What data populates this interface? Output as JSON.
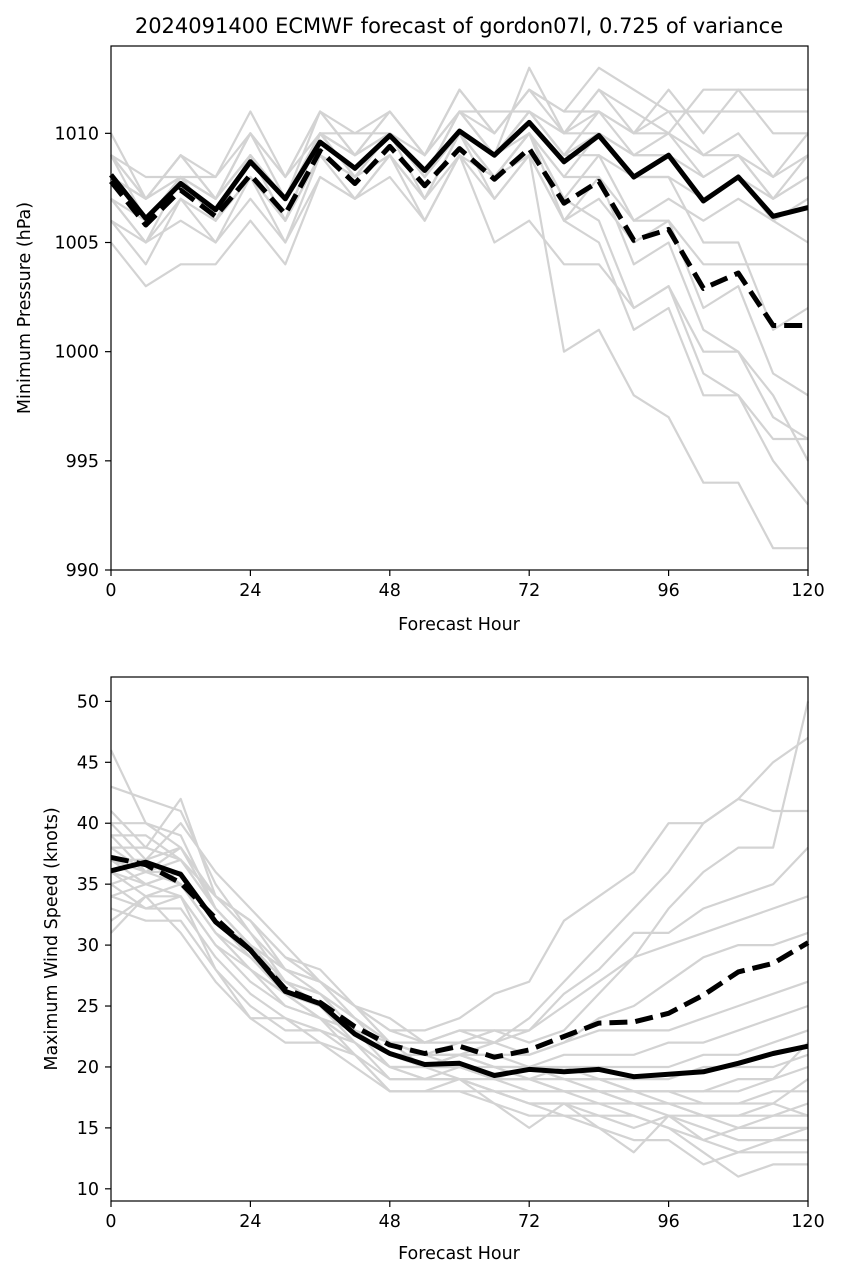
{
  "figure": {
    "title": "2024091400 ECMWF forecast of gordon07l, 0.725 of variance"
  },
  "colors": {
    "member": "#d3d3d3",
    "mean": "#000000"
  },
  "chart_data": [
    {
      "type": "line",
      "xlabel": "Forecast Hour",
      "ylabel": "Minimum Pressure (hPa)",
      "xlim": [
        0,
        120
      ],
      "ylim": [
        990,
        1014
      ],
      "xticks": [
        0,
        24,
        48,
        72,
        96,
        120
      ],
      "yticks": [
        990,
        995,
        1000,
        1005,
        1010
      ],
      "x": [
        0,
        6,
        12,
        18,
        24,
        30,
        36,
        42,
        48,
        54,
        60,
        66,
        72,
        78,
        84,
        90,
        96,
        102,
        108,
        114,
        120
      ],
      "members": [
        [
          1010,
          1007,
          1009,
          1008,
          1010,
          1008,
          1011,
          1009,
          1010,
          1008,
          1011,
          1009,
          1013,
          1010,
          1012,
          1011,
          1010,
          1012,
          1012,
          1012,
          1012
        ],
        [
          1009,
          1008,
          1008,
          1008,
          1011,
          1008,
          1010,
          1010,
          1011,
          1009,
          1012,
          1010,
          1012,
          1011,
          1013,
          1012,
          1011,
          1011,
          1011,
          1011,
          1011
        ],
        [
          1008,
          1007,
          1009,
          1007,
          1010,
          1007,
          1011,
          1010,
          1010,
          1009,
          1011,
          1011,
          1011,
          1010,
          1012,
          1010,
          1012,
          1010,
          1012,
          1010,
          1010
        ],
        [
          1008,
          1006,
          1008,
          1007,
          1009,
          1007,
          1010,
          1009,
          1010,
          1008,
          1010,
          1009,
          1011,
          1009,
          1011,
          1010,
          1010,
          1009,
          1010,
          1008,
          1010
        ],
        [
          1007,
          1005,
          1008,
          1006,
          1009,
          1006,
          1010,
          1008,
          1010,
          1008,
          1010,
          1008,
          1010,
          1008,
          1010,
          1009,
          1009,
          1008,
          1009,
          1007,
          1009
        ],
        [
          1007,
          1005,
          1007,
          1006,
          1008,
          1006,
          1009,
          1008,
          1009,
          1007,
          1010,
          1008,
          1010,
          1007,
          1009,
          1008,
          1008,
          1007,
          1008,
          1007,
          1008
        ],
        [
          1006,
          1004,
          1007,
          1005,
          1008,
          1005,
          1009,
          1007,
          1009,
          1007,
          1009,
          1008,
          1009,
          1006,
          1008,
          1006,
          1007,
          1006,
          1007,
          1006,
          1007
        ],
        [
          1006,
          1005,
          1006,
          1005,
          1007,
          1005,
          1008,
          1007,
          1009,
          1006,
          1009,
          1007,
          1009,
          1006,
          1007,
          1005,
          1006,
          1004,
          1004,
          1004,
          1004
        ],
        [
          1005,
          1003,
          1004,
          1004,
          1006,
          1004,
          1008,
          1007,
          1008,
          1006,
          1009,
          1005,
          1006,
          1004,
          1004,
          1002,
          1003,
          1000,
          1000,
          997,
          996
        ],
        [
          1008,
          1006,
          1008,
          1006,
          1008,
          1006,
          1009,
          1008,
          1009,
          1007,
          1010,
          1007,
          1009,
          1000,
          1001,
          998,
          997,
          994,
          994,
          991,
          991
        ],
        [
          1009,
          1007,
          1008,
          1007,
          1009,
          1007,
          1010,
          1008,
          1010,
          1008,
          1010,
          1008,
          1010,
          1006,
          1005,
          1001,
          1002,
          998,
          998,
          995,
          993
        ],
        [
          1007,
          1006,
          1008,
          1006,
          1009,
          1006,
          1009,
          1008,
          1010,
          1007,
          1010,
          1008,
          1010,
          1007,
          1006,
          1002,
          1003,
          999,
          998,
          996,
          996
        ],
        [
          1008,
          1006,
          1008,
          1007,
          1009,
          1007,
          1010,
          1009,
          1010,
          1008,
          1011,
          1009,
          1010,
          1008,
          1008,
          1004,
          1005,
          1001,
          1000,
          998,
          995
        ],
        [
          1009,
          1006,
          1008,
          1006,
          1009,
          1006,
          1010,
          1008,
          1010,
          1008,
          1011,
          1009,
          1011,
          1009,
          1009,
          1006,
          1006,
          1002,
          1003,
          999,
          998
        ],
        [
          1008,
          1006,
          1008,
          1006,
          1008,
          1006,
          1010,
          1008,
          1010,
          1008,
          1010,
          1009,
          1011,
          1009,
          1010,
          1008,
          1008,
          1005,
          1005,
          1001,
          1002
        ],
        [
          1008,
          1007,
          1008,
          1007,
          1009,
          1007,
          1010,
          1009,
          1011,
          1009,
          1011,
          1010,
          1012,
          1010,
          1011,
          1009,
          1009,
          1007,
          1008,
          1006,
          1005
        ],
        [
          1009,
          1007,
          1009,
          1007,
          1010,
          1008,
          1011,
          1009,
          1011,
          1009,
          1012,
          1010,
          1012,
          1011,
          1011,
          1010,
          1011,
          1009,
          1009,
          1008,
          1009
        ],
        [
          1008,
          1006,
          1008,
          1006,
          1009,
          1006,
          1010,
          1008,
          1010,
          1008,
          1010,
          1009,
          1011,
          1010,
          1010,
          1009,
          1010,
          1008,
          1009,
          1007,
          1008
        ]
      ],
      "mean": [
        1008.1,
        1006.1,
        1007.7,
        1006.5,
        1008.7,
        1007.0,
        1009.6,
        1008.4,
        1009.9,
        1008.3,
        1010.1,
        1009.0,
        1010.5,
        1008.7,
        1009.9,
        1008.0,
        1009.0,
        1006.9,
        1008.0,
        1006.2,
        1006.6
      ],
      "mean_dashed": [
        1007.8,
        1005.8,
        1007.4,
        1006.2,
        1008.1,
        1006.3,
        1009.2,
        1007.7,
        1009.4,
        1007.6,
        1009.3,
        1007.9,
        1009.3,
        1006.8,
        1007.8,
        1005.1,
        1005.6,
        1002.9,
        1003.6,
        1001.2,
        1001.2
      ]
    },
    {
      "type": "line",
      "xlabel": "Forecast Hour",
      "ylabel": "Maximum Wind Speed (knots)",
      "xlim": [
        0,
        120
      ],
      "ylim": [
        9,
        52
      ],
      "xticks": [
        0,
        24,
        48,
        72,
        96,
        120
      ],
      "yticks": [
        10,
        15,
        20,
        25,
        30,
        35,
        40,
        45,
        50
      ],
      "x": [
        0,
        6,
        12,
        18,
        24,
        30,
        36,
        42,
        48,
        54,
        60,
        66,
        72,
        78,
        84,
        90,
        96,
        102,
        108,
        114,
        120
      ],
      "members": [
        [
          46,
          40,
          39,
          33,
          30,
          26,
          24,
          23,
          22,
          21,
          21,
          22,
          24,
          27,
          30,
          33,
          36,
          40,
          42,
          41,
          41
        ],
        [
          43,
          42,
          41,
          35,
          31,
          27,
          26,
          24,
          22,
          22,
          23,
          23,
          22,
          23,
          26,
          29,
          33,
          36,
          38,
          38,
          50
        ],
        [
          41,
          38,
          42,
          34,
          32,
          28,
          27,
          25,
          23,
          23,
          24,
          26,
          27,
          32,
          34,
          36,
          40,
          40,
          42,
          45,
          47
        ],
        [
          40,
          37,
          40,
          36,
          33,
          30,
          27,
          25,
          24,
          22,
          23,
          22,
          23,
          26,
          28,
          31,
          31,
          33,
          34,
          35,
          38
        ],
        [
          39,
          36,
          38,
          34,
          32,
          29,
          27,
          25,
          23,
          22,
          22,
          23,
          23,
          25,
          27,
          29,
          30,
          31,
          32,
          33,
          34
        ],
        [
          38,
          36,
          37,
          33,
          30,
          28,
          26,
          24,
          22,
          21,
          22,
          22,
          21,
          22,
          24,
          25,
          27,
          29,
          30,
          30,
          31
        ],
        [
          37,
          35,
          36,
          32,
          29,
          27,
          25,
          23,
          21,
          21,
          21,
          21,
          21,
          22,
          23,
          23,
          23,
          24,
          25,
          26,
          27
        ],
        [
          36,
          34,
          35,
          31,
          28,
          26,
          24,
          23,
          21,
          20,
          21,
          21,
          20,
          21,
          21,
          21,
          22,
          22,
          23,
          24,
          25
        ],
        [
          35,
          33,
          34,
          30,
          27,
          25,
          24,
          22,
          20,
          20,
          20,
          20,
          19,
          20,
          20,
          20,
          20,
          21,
          21,
          22,
          23
        ],
        [
          34,
          33,
          33,
          29,
          26,
          24,
          23,
          22,
          20,
          19,
          19,
          19,
          19,
          19,
          19,
          19,
          19,
          20,
          20,
          20,
          21
        ],
        [
          33,
          32,
          32,
          28,
          25,
          23,
          23,
          21,
          19,
          19,
          19,
          18,
          18,
          18,
          18,
          18,
          18,
          18,
          19,
          19,
          20
        ],
        [
          32,
          34,
          31,
          27,
          24,
          24,
          22,
          21,
          18,
          18,
          18,
          18,
          17,
          17,
          17,
          17,
          17,
          17,
          17,
          18,
          18
        ],
        [
          31,
          34,
          34,
          28,
          24,
          22,
          22,
          20,
          18,
          18,
          18,
          17,
          16,
          16,
          16,
          15,
          16,
          16,
          16,
          16,
          17
        ],
        [
          35,
          36,
          35,
          31,
          28,
          25,
          24,
          21,
          18,
          18,
          19,
          17,
          15,
          17,
          15,
          13,
          16,
          14,
          15,
          16,
          16
        ],
        [
          36,
          35,
          36,
          32,
          29,
          26,
          25,
          22,
          19,
          19,
          19,
          18,
          17,
          16,
          15,
          14,
          14,
          12,
          13,
          14,
          15
        ],
        [
          37,
          37,
          38,
          33,
          30,
          27,
          26,
          23,
          20,
          20,
          19,
          18,
          17,
          17,
          16,
          16,
          15,
          13,
          11,
          12,
          12
        ],
        [
          38,
          38,
          37,
          33,
          30,
          28,
          27,
          24,
          21,
          21,
          20,
          19,
          18,
          18,
          17,
          16,
          15,
          14,
          13,
          13,
          13
        ],
        [
          39,
          39,
          37,
          34,
          31,
          28,
          27,
          25,
          22,
          20,
          21,
          20,
          19,
          18,
          18,
          17,
          16,
          15,
          14,
          14,
          14
        ],
        [
          40,
          40,
          38,
          34,
          32,
          29,
          28,
          25,
          22,
          21,
          21,
          20,
          20,
          19,
          18,
          18,
          17,
          16,
          15,
          15,
          15
        ],
        [
          36,
          37,
          35,
          31,
          29,
          26,
          25,
          23,
          21,
          20,
          20,
          19,
          20,
          19,
          19,
          18,
          18,
          17,
          17,
          17,
          16
        ],
        [
          34,
          35,
          34,
          30,
          28,
          26,
          24,
          22,
          20,
          19,
          20,
          19,
          19,
          18,
          18,
          17,
          17,
          16,
          16,
          17,
          19
        ],
        [
          37,
          36,
          36,
          32,
          30,
          27,
          25,
          23,
          21,
          20,
          21,
          20,
          20,
          20,
          19,
          18,
          18,
          18,
          18,
          19,
          22
        ]
      ],
      "mean": [
        36.1,
        36.8,
        35.8,
        31.9,
        29.6,
        26.2,
        25.2,
        22.7,
        21.1,
        20.2,
        20.3,
        19.3,
        19.8,
        19.6,
        19.8,
        19.2,
        19.4,
        19.6,
        20.3,
        21.1,
        21.7
      ],
      "mean_dashed": [
        37.2,
        36.6,
        35.1,
        32.2,
        29.6,
        26.4,
        25.3,
        23.3,
        21.8,
        21.1,
        21.7,
        20.8,
        21.4,
        22.5,
        23.6,
        23.7,
        24.4,
        25.9,
        27.8,
        28.5,
        30.2
      ]
    }
  ]
}
